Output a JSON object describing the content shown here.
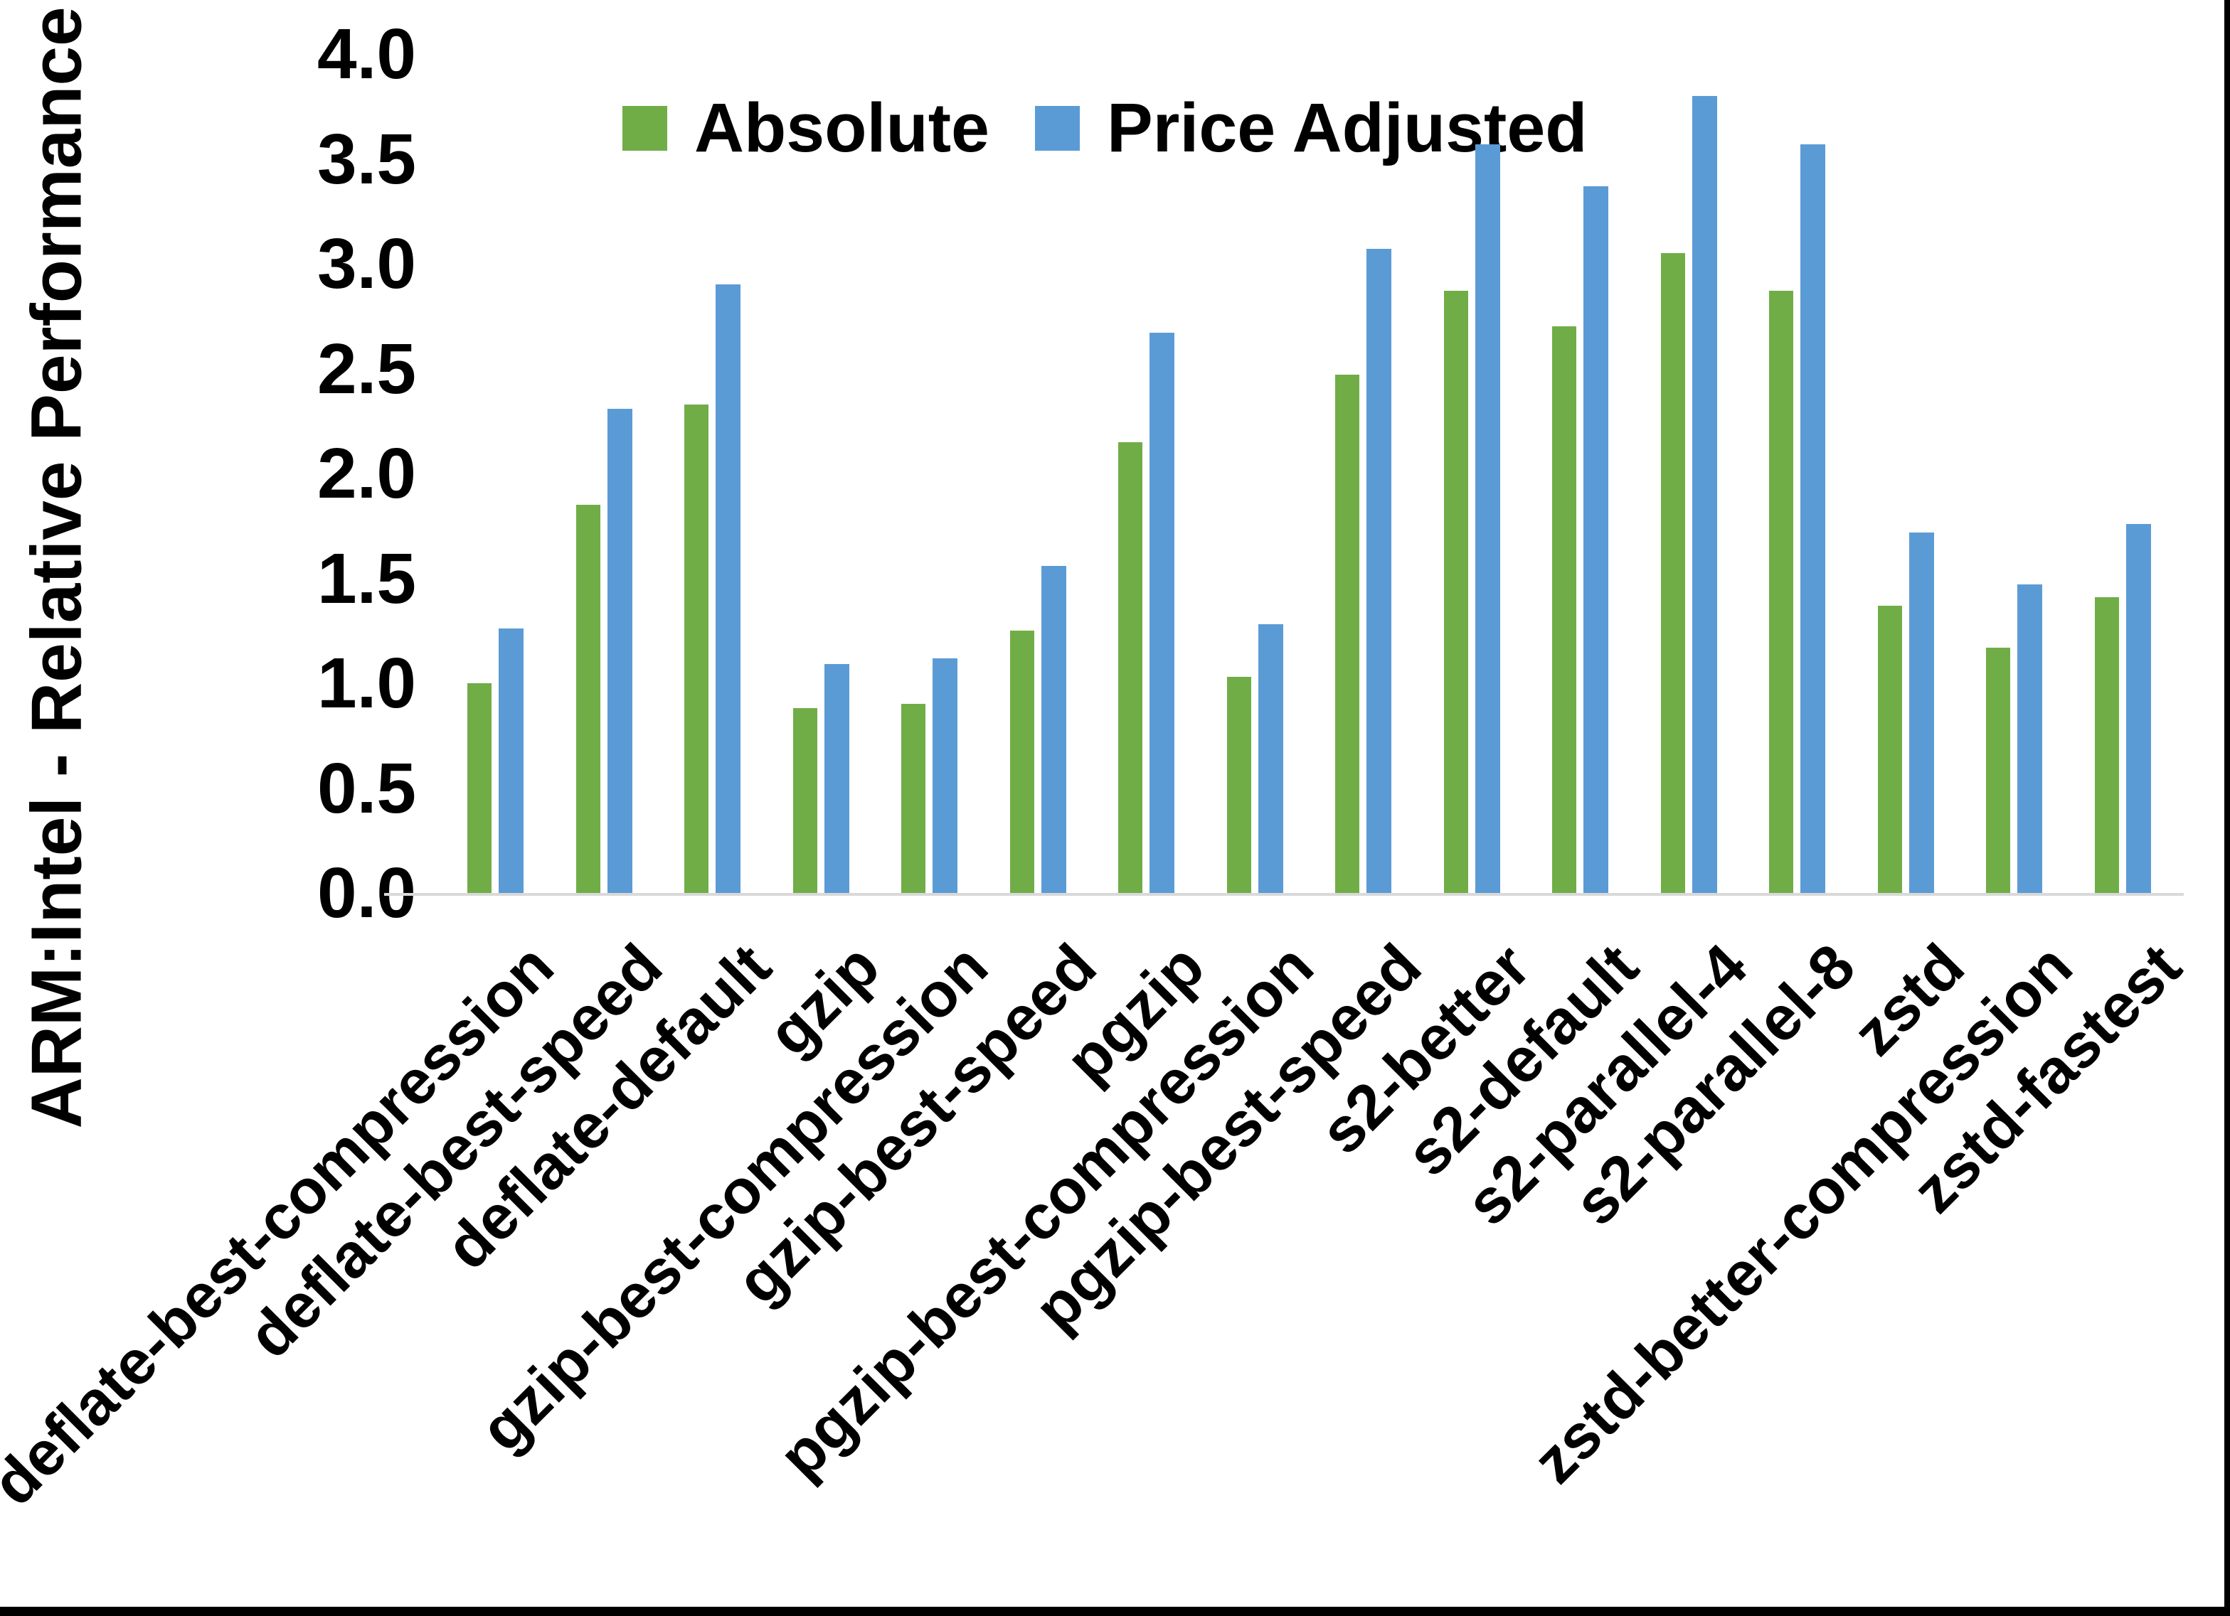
{
  "y_axis_title": "ARM:Intel - Relative Performance",
  "colors": {
    "absolute": "#70AD47",
    "price_adjusted": "#5B9BD5",
    "axis_line": "#D9D9D9",
    "text": "#000000",
    "background": "#FFFFFF",
    "frame": "#000000"
  },
  "chart_data": {
    "type": "bar",
    "title": "",
    "xlabel": "",
    "ylabel": "ARM:Intel - Relative Performance",
    "ylim": [
      0.0,
      4.0
    ],
    "yticks": [
      "0.0",
      "0.5",
      "1.0",
      "1.5",
      "2.0",
      "2.5",
      "3.0",
      "3.5",
      "4.0"
    ],
    "grid": false,
    "legend_position": "top-center",
    "categories": [
      "deflate-best-compression",
      "deflate-best-speed",
      "deflate-default",
      "gzip",
      "gzip-best-compression",
      "gzip-best-speed",
      "pgzip",
      "pgzip-best-compression",
      "pgzip-best-speed",
      "s2-better",
      "s2-default",
      "s2-parallel-4",
      "s2-parallel-8",
      "zstd",
      "zstd-better-compression",
      "zstd-fastest"
    ],
    "series": [
      {
        "name": "Absolute",
        "color": "#70AD47",
        "values": [
          1.0,
          1.85,
          2.33,
          0.88,
          0.9,
          1.25,
          2.15,
          1.03,
          2.47,
          2.87,
          2.7,
          3.05,
          2.87,
          1.37,
          1.17,
          1.41
        ]
      },
      {
        "name": "Price Adjusted",
        "color": "#5B9BD5",
        "values": [
          1.26,
          2.31,
          2.9,
          1.09,
          1.12,
          1.56,
          2.67,
          1.28,
          3.07,
          3.57,
          3.37,
          3.8,
          3.57,
          1.72,
          1.47,
          1.76
        ]
      }
    ]
  }
}
